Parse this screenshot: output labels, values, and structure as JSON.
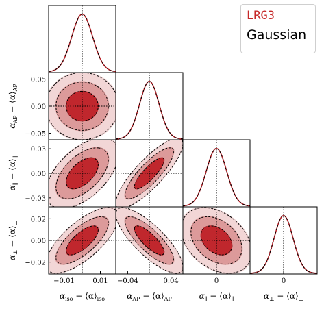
{
  "legend": {
    "label": "LRG3",
    "method": "Gaussian"
  },
  "colors": {
    "contour_1sigma": "#c0272d",
    "contour_2sigma": "#dc9a9a",
    "contour_3sigma": "#f2d6d6",
    "curve": "#c0272d",
    "gaussian_dash": "#000000"
  },
  "chart_data": {
    "type": "corner",
    "parameters": [
      {
        "key": "iso",
        "label_main": "α",
        "label_sub": "iso",
        "label_rest": " − ⟨α⟩",
        "label_rest_sub": "iso",
        "range": [
          -0.0185,
          0.0185
        ],
        "ticks": [
          -0.01,
          0.01
        ],
        "tick_labels": [
          "−0.01",
          "0.01"
        ],
        "sigma": 0.0058,
        "mean": 0.0
      },
      {
        "key": "AP",
        "label_main": "α",
        "label_sub": "AP",
        "label_rest": " − ⟨α⟩",
        "label_rest_sub": "AP",
        "range": [
          -0.062,
          0.062
        ],
        "ticks": [
          -0.05,
          0.0,
          0.05
        ],
        "tick_labels": [
          "−0.05",
          "0.00",
          "0.05"
        ],
        "x_ticks": [
          -0.04,
          0.04
        ],
        "x_tick_labels": [
          "−0.04",
          "0.04"
        ],
        "sigma": 0.018,
        "mean": 0.0
      },
      {
        "key": "par",
        "label_main": "α",
        "label_sub": "∥",
        "label_rest": " − ⟨α⟩",
        "label_rest_sub": "∥",
        "range": [
          -0.041,
          0.041
        ],
        "ticks": [
          -0.03,
          0.0,
          0.03
        ],
        "tick_labels": [
          "−0.03",
          "0.00",
          "0.03"
        ],
        "x_ticks": [
          0.0
        ],
        "x_tick_labels": [
          "0"
        ],
        "sigma": 0.0125,
        "mean": 0.0
      },
      {
        "key": "perp",
        "label_main": "α",
        "label_sub": "⊥",
        "label_rest": " − ⟨α⟩",
        "label_rest_sub": "⊥",
        "range": [
          -0.031,
          0.031
        ],
        "ticks": [
          -0.02,
          0.0,
          0.02
        ],
        "tick_labels": [
          "−0.02",
          "0.00",
          "0.02"
        ],
        "x_ticks": [
          0.0
        ],
        "x_tick_labels": [
          "0"
        ],
        "sigma": 0.0088,
        "mean": 0.0
      }
    ],
    "correlations": {
      "1-0": 0.0,
      "2-0": 0.55,
      "2-1": 0.84,
      "3-0": 0.72,
      "3-1": -0.8,
      "3-2": -0.35
    },
    "reference_lines": {
      "x": 0.0,
      "y": 0.0,
      "style": "dotted"
    },
    "contour_levels_sigma": [
      1,
      2,
      3
    ]
  }
}
